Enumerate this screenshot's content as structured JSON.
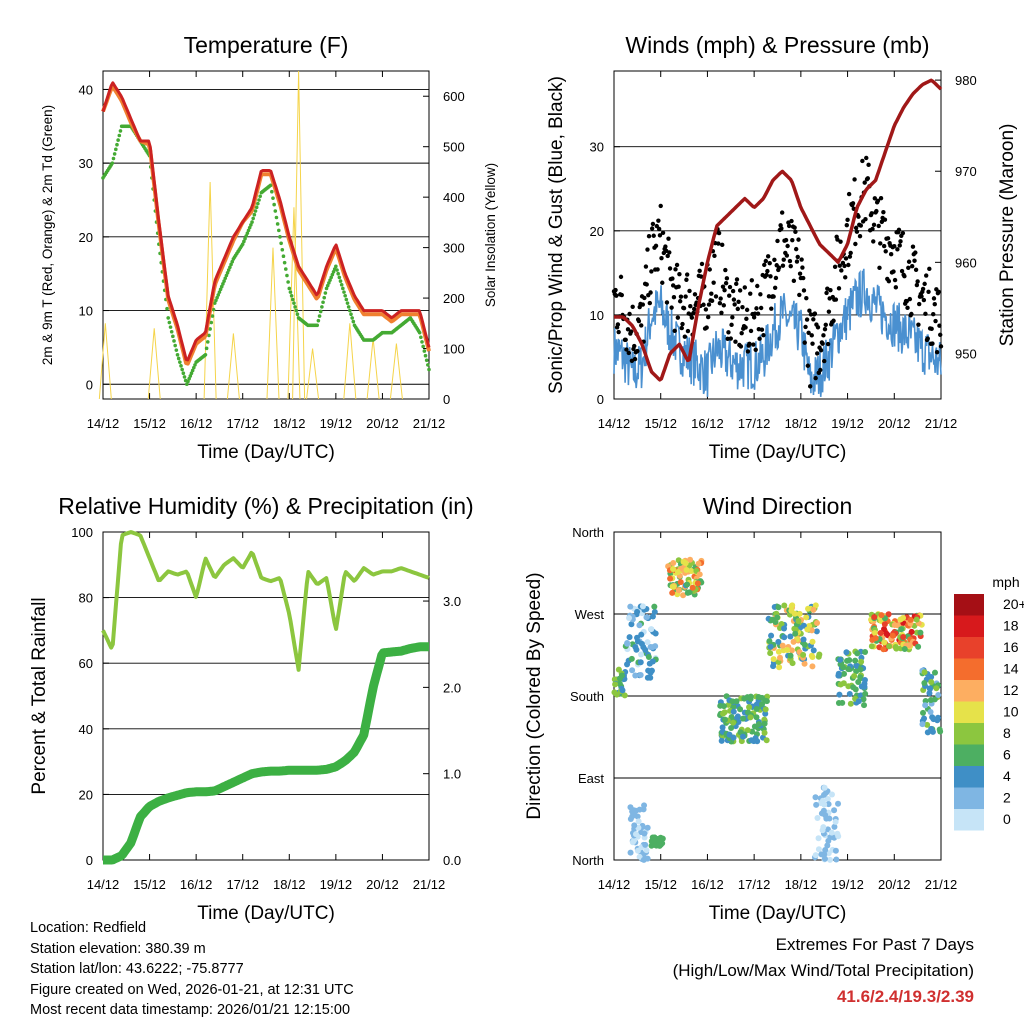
{
  "time_ticks": [
    "14/12",
    "15/12",
    "16/12",
    "17/12",
    "18/12",
    "19/12",
    "20/12",
    "21/12"
  ],
  "time_axis_label": "Time (Day/UTC)",
  "panels": {
    "temperature": {
      "title": "Temperature (F)",
      "ylabel_left": "2m & 9m T (Red, Orange) & 2m Td (Green)",
      "ylabel_right": "Solar Insolation (Yellow)",
      "left_ticks": [
        "0",
        "10",
        "20",
        "30",
        "40"
      ],
      "right_ticks": [
        "0",
        "100",
        "200",
        "300",
        "400",
        "500",
        "600"
      ]
    },
    "wind_pressure": {
      "title": "Winds (mph) & Pressure (mb)",
      "ylabel_left": "Sonic/Prop Wind & Gust (Blue, Black)",
      "ylabel_right": "Station Pressure (Maroon)",
      "left_ticks": [
        "0",
        "10",
        "20",
        "30"
      ],
      "right_ticks": [
        "950",
        "960",
        "970",
        "980"
      ]
    },
    "humidity": {
      "title": "Relative Humidity (%) & Precipitation (in)",
      "ylabel_left": "Percent & Total Rainfall",
      "left_ticks": [
        "0",
        "20",
        "40",
        "60",
        "80",
        "100"
      ],
      "right_ticks": [
        "0.0",
        "1.0",
        "2.0",
        "3.0"
      ]
    },
    "wind_direction": {
      "title": "Wind Direction",
      "ylabel_left": "Direction (Colored By Speed)",
      "left_ticks": [
        "North",
        "East",
        "South",
        "West",
        "North"
      ],
      "legend_title": "mph",
      "legend_labels": [
        "20+",
        "18",
        "16",
        "14",
        "12",
        "10",
        "8",
        "6",
        "4",
        "2",
        "0"
      ],
      "legend_colors": [
        "#a50f15",
        "#d7191c",
        "#e8412b",
        "#f46d2d",
        "#fdae61",
        "#e6e24a",
        "#8cc63f",
        "#4daf62",
        "#3f8fc6",
        "#7fb6e3",
        "#c6e4f7"
      ]
    }
  },
  "info": {
    "location": "Location: Redfield",
    "elevation": "Station elevation: 380.39 m",
    "latlon": "Station lat/lon: 43.6222; -75.8777",
    "created": "Figure created on Wed, 2026-01-21, at 12:31 UTC",
    "recent": "Most recent data timestamp: 2026/01/21 12:15:00"
  },
  "extremes": {
    "title": "Extremes For Past 7 Days",
    "subtitle": "(High/Low/Max Wind/Total Precipitation)",
    "values": "41.6/2.4/19.3/2.39"
  },
  "colors": {
    "temp_2m": "#cc2222",
    "temp_9m": "#f08030",
    "dewpoint": "#44aa33",
    "solar": "#f5d44a",
    "wind": "#4a90d0",
    "gust": "#000000",
    "pressure": "#a01818",
    "humidity": "#8cc63f",
    "precip": "#3cb043"
  },
  "chart_data": [
    {
      "type": "line",
      "title": "Temperature (F)",
      "xlabel": "Time (Day/UTC)",
      "ylabel": "2m & 9m T (Red, Orange) & 2m Td (Green)",
      "ylabel_right": "Solar Insolation (Yellow)",
      "x": [
        0,
        0.2,
        0.4,
        0.6,
        0.8,
        1.0,
        1.2,
        1.4,
        1.6,
        1.8,
        2.0,
        2.2,
        2.4,
        2.6,
        2.8,
        3.0,
        3.2,
        3.4,
        3.6,
        3.8,
        4.0,
        4.2,
        4.4,
        4.6,
        4.8,
        5.0,
        5.2,
        5.4,
        5.6,
        5.8,
        6.0,
        6.2,
        6.4,
        6.6,
        6.8,
        7.0
      ],
      "xlim": [
        0,
        7
      ],
      "ylim": [
        -2,
        42.5
      ],
      "ylim_right": [
        0,
        650
      ],
      "series": [
        {
          "name": "2m T",
          "values": [
            37,
            41,
            39,
            36,
            33,
            33,
            22,
            12,
            8,
            3,
            6,
            7,
            14,
            17,
            20,
            22,
            24,
            29,
            29,
            25,
            20,
            16,
            14,
            12,
            16,
            19,
            15,
            12,
            10,
            10,
            10,
            9,
            10,
            10,
            10,
            5
          ]
        },
        {
          "name": "9m T",
          "values": [
            37,
            40.5,
            38.5,
            35.5,
            33,
            32.5,
            21.5,
            11.5,
            7.5,
            2.5,
            5.5,
            6.5,
            13.5,
            16.5,
            19.5,
            22,
            23.5,
            28.5,
            28.5,
            24.5,
            19.5,
            15.5,
            13.5,
            11.5,
            15.5,
            18.5,
            14.5,
            11.5,
            9.5,
            9.5,
            9.5,
            8.5,
            9.5,
            9.5,
            9.5,
            4.5
          ]
        },
        {
          "name": "2m Td",
          "values": [
            28,
            30,
            35,
            35,
            33,
            31,
            19,
            9,
            4,
            0,
            3,
            4,
            11,
            14,
            17,
            19,
            22,
            26,
            27,
            20,
            13,
            9,
            8,
            8,
            13,
            16,
            12,
            8,
            6,
            6,
            7,
            7,
            8,
            9,
            7,
            2
          ]
        },
        {
          "name": "Solar",
          "axis": "right",
          "peaks": [
            [
              0.05,
              150
            ],
            [
              1.1,
              140
            ],
            [
              2.3,
              430
            ],
            [
              2.8,
              130
            ],
            [
              3.65,
              300
            ],
            [
              4.1,
              380
            ],
            [
              4.2,
              650
            ],
            [
              4.5,
              100
            ],
            [
              5.3,
              150
            ],
            [
              5.8,
              120
            ],
            [
              6.3,
              110
            ]
          ]
        }
      ]
    },
    {
      "type": "line",
      "title": "Winds (mph) & Pressure (mb)",
      "xlabel": "Time (Day/UTC)",
      "ylabel": "Sonic/Prop Wind & Gust (Blue, Black)",
      "ylabel_right": "Station Pressure (Maroon)",
      "x": [
        0,
        0.2,
        0.4,
        0.6,
        0.8,
        1.0,
        1.2,
        1.4,
        1.6,
        1.8,
        2.0,
        2.2,
        2.4,
        2.6,
        2.8,
        3.0,
        3.2,
        3.4,
        3.6,
        3.8,
        4.0,
        4.2,
        4.4,
        4.6,
        4.8,
        5.0,
        5.2,
        5.4,
        5.6,
        5.8,
        6.0,
        6.2,
        6.4,
        6.6,
        6.8,
        7.0
      ],
      "xlim": [
        0,
        7
      ],
      "ylim": [
        0,
        39
      ],
      "ylim_right": [
        945,
        981
      ],
      "series": [
        {
          "name": "Wind",
          "values": [
            6,
            5,
            3,
            4,
            10,
            11,
            8,
            6,
            5,
            4,
            3,
            6,
            5,
            4,
            4,
            4,
            5,
            8,
            10,
            9,
            8,
            2,
            3,
            5,
            8,
            10,
            12,
            13,
            11,
            10,
            9,
            8,
            7,
            6,
            5,
            4
          ]
        },
        {
          "name": "Gust",
          "values": [
            11,
            10,
            7,
            8,
            16,
            18,
            13,
            10,
            11,
            10,
            12,
            16,
            11,
            9,
            8,
            9,
            11,
            15,
            18,
            16,
            14,
            5,
            6,
            10,
            15,
            19,
            22,
            24,
            20,
            18,
            17,
            15,
            13,
            11,
            10,
            8
          ]
        },
        {
          "name": "Pressure",
          "axis": "right",
          "values": [
            954,
            954,
            953,
            951,
            948,
            947,
            950,
            951,
            949,
            955,
            960,
            964,
            965,
            966,
            967,
            966,
            967,
            969,
            970,
            969,
            966,
            964,
            962,
            961,
            960,
            962,
            966,
            968,
            969,
            972,
            975,
            977,
            978.5,
            979.5,
            980,
            979
          ]
        }
      ]
    },
    {
      "type": "line",
      "title": "Relative Humidity (%) & Precipitation (in)",
      "xlabel": "Time (Day/UTC)",
      "ylabel": "Percent & Total Rainfall",
      "x": [
        0,
        0.2,
        0.4,
        0.6,
        0.8,
        1.0,
        1.2,
        1.4,
        1.6,
        1.8,
        2.0,
        2.2,
        2.4,
        2.6,
        2.8,
        3.0,
        3.2,
        3.4,
        3.6,
        3.8,
        4.0,
        4.2,
        4.4,
        4.6,
        4.8,
        5.0,
        5.2,
        5.4,
        5.6,
        5.8,
        6.0,
        6.2,
        6.4,
        6.6,
        6.8,
        7.0
      ],
      "xlim": [
        0,
        7
      ],
      "ylim": [
        0,
        100
      ],
      "ylim_right": [
        0,
        3.8
      ],
      "series": [
        {
          "name": "RH",
          "values": [
            70,
            64,
            99,
            100,
            99,
            92,
            85,
            88,
            87,
            88,
            80,
            92,
            86,
            90,
            92,
            89,
            94,
            86,
            85,
            86,
            75,
            58,
            88,
            84,
            86,
            70,
            88,
            85,
            89,
            87,
            88,
            88,
            89,
            88,
            87,
            86
          ]
        },
        {
          "name": "Precip",
          "axis": "right",
          "values": [
            0,
            0,
            0.05,
            0.2,
            0.5,
            0.62,
            0.68,
            0.72,
            0.75,
            0.78,
            0.79,
            0.79,
            0.8,
            0.85,
            0.9,
            0.95,
            1.0,
            1.02,
            1.03,
            1.03,
            1.04,
            1.04,
            1.04,
            1.04,
            1.05,
            1.08,
            1.15,
            1.25,
            1.45,
            2.0,
            2.4,
            2.41,
            2.42,
            2.45,
            2.47,
            2.47
          ]
        }
      ]
    },
    {
      "type": "scatter",
      "title": "Wind Direction",
      "xlabel": "Time (Day/UTC)",
      "ylabel": "Direction (Colored By Speed)",
      "y_categories": [
        "North",
        "East",
        "South",
        "West",
        "North"
      ],
      "xlim": [
        0,
        7
      ],
      "ylim": [
        0,
        360
      ],
      "clusters": [
        {
          "x": [
            0,
            0.25
          ],
          "dir": [
            180,
            210
          ],
          "speed": [
            3,
            8
          ]
        },
        {
          "x": [
            0.25,
            0.9
          ],
          "dir": [
            200,
            280
          ],
          "speed": [
            0,
            6
          ]
        },
        {
          "x": [
            0.35,
            0.75
          ],
          "dir": [
            0,
            60
          ],
          "speed": [
            0,
            3
          ]
        },
        {
          "x": [
            0.8,
            1.05
          ],
          "dir": [
            15,
            25
          ],
          "speed": [
            5,
            7
          ]
        },
        {
          "x": [
            1.15,
            1.9
          ],
          "dir": [
            290,
            330
          ],
          "speed": [
            4,
            14
          ]
        },
        {
          "x": [
            2.25,
            3.3
          ],
          "dir": [
            130,
            180
          ],
          "speed": [
            3,
            8
          ]
        },
        {
          "x": [
            3.3,
            4.4
          ],
          "dir": [
            210,
            280
          ],
          "speed": [
            3,
            13
          ]
        },
        {
          "x": [
            4.3,
            4.8
          ],
          "dir": [
            0,
            80
          ],
          "speed": [
            0,
            3
          ]
        },
        {
          "x": [
            4.8,
            5.4
          ],
          "dir": [
            170,
            230
          ],
          "speed": [
            3,
            8
          ]
        },
        {
          "x": [
            5.5,
            6.6
          ],
          "dir": [
            230,
            270
          ],
          "speed": [
            6,
            18
          ]
        },
        {
          "x": [
            6.6,
            7.0
          ],
          "dir": [
            140,
            210
          ],
          "speed": [
            2,
            8
          ]
        }
      ]
    }
  ]
}
